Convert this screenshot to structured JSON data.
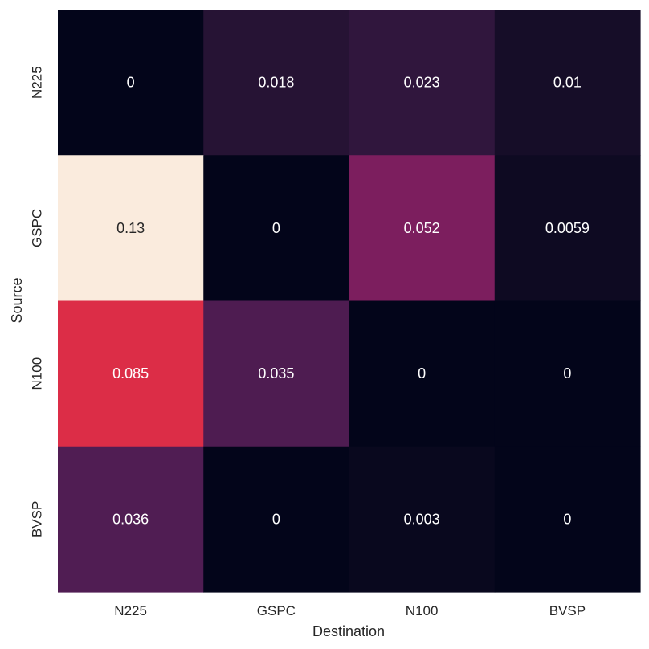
{
  "chart_data": {
    "type": "heatmap",
    "title": "",
    "xlabel": "Destination",
    "ylabel": "Source",
    "x_categories": [
      "N225",
      "GSPC",
      "N100",
      "BVSP"
    ],
    "y_categories": [
      "N225",
      "GSPC",
      "N100",
      "BVSP"
    ],
    "values": [
      [
        0,
        0.018,
        0.023,
        0.01
      ],
      [
        0.13,
        0,
        0.052,
        0.0059
      ],
      [
        0.085,
        0.035,
        0,
        0
      ],
      [
        0.036,
        0,
        0.003,
        0
      ]
    ],
    "labels": [
      [
        "0",
        "0.018",
        "0.023",
        "0.01"
      ],
      [
        "0.13",
        "0",
        "0.052",
        "0.0059"
      ],
      [
        "0.085",
        "0.035",
        "0",
        "0"
      ],
      [
        "0.036",
        "0",
        "0.003",
        "0"
      ]
    ],
    "vmin": 0,
    "vmax": 0.13,
    "colormap": "rocket",
    "colorbar": false,
    "grid": false
  }
}
